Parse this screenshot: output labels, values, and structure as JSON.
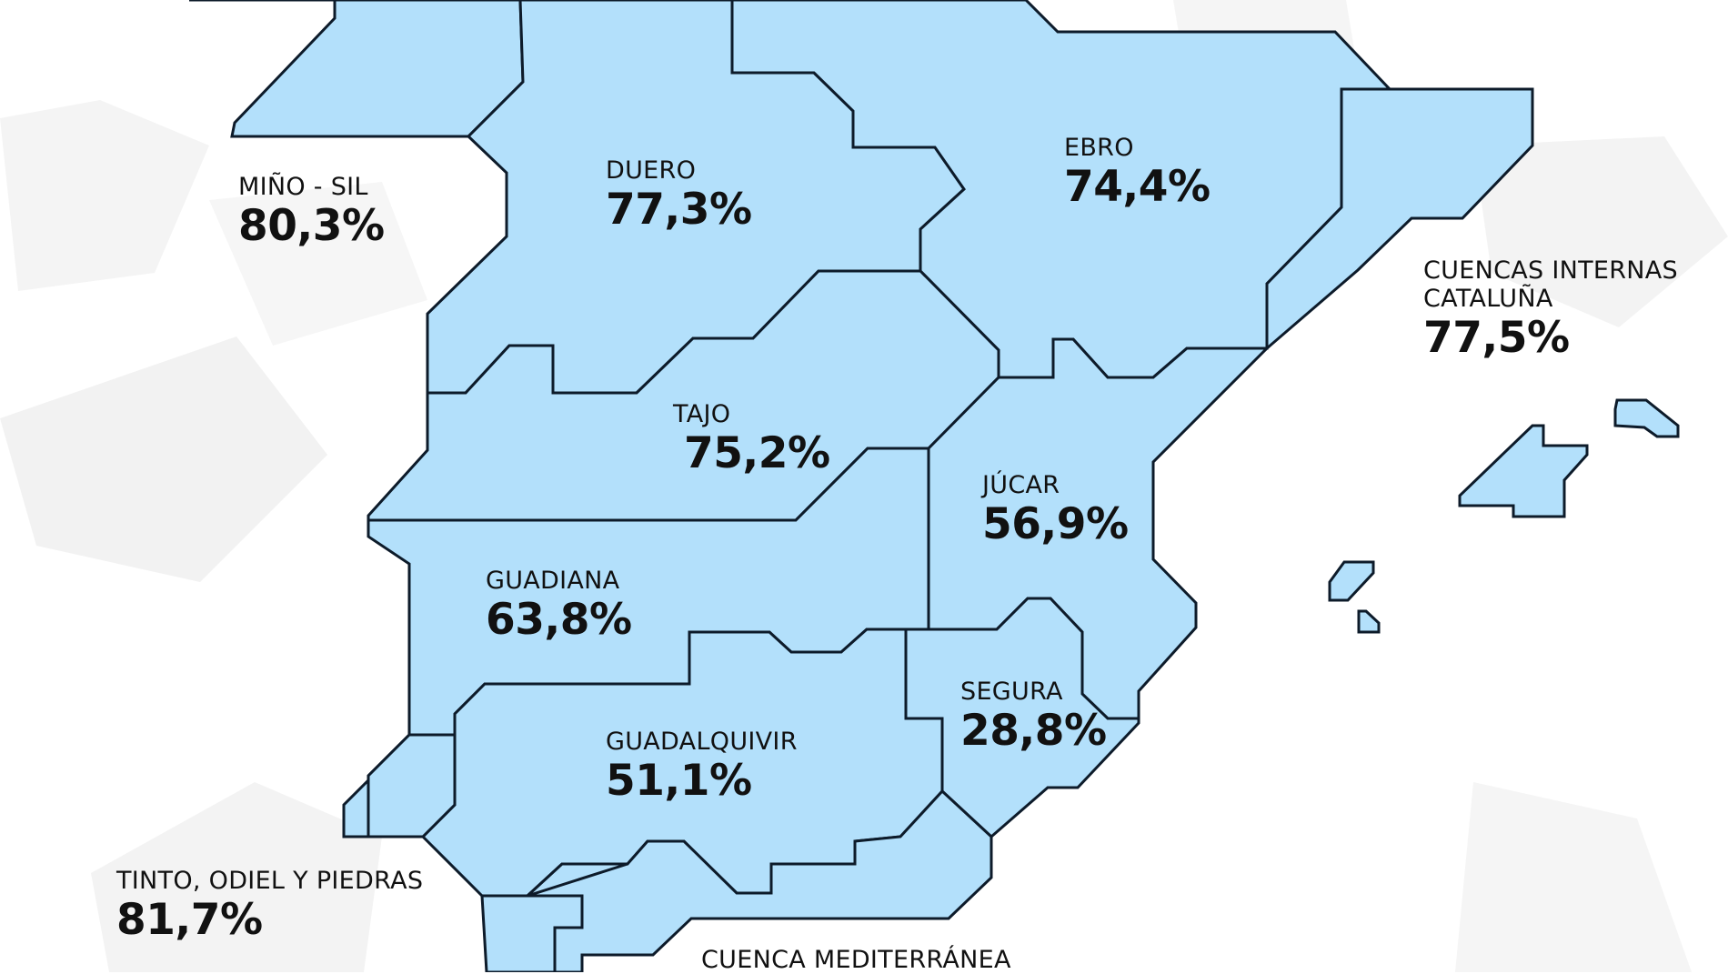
{
  "colors": {
    "basin_fill": "#b3e0fb",
    "border": "#0d1b2a",
    "text": "#111111",
    "background": "#ffffff"
  },
  "basins": {
    "mino_sil": {
      "name": "MIÑO - SIL",
      "value": "80,3%"
    },
    "duero": {
      "name": "DUERO",
      "value": "77,3%"
    },
    "ebro": {
      "name": "EBRO",
      "value": "74,4%"
    },
    "cuencas_internas_cataluna": {
      "name_line1": "CUENCAS INTERNAS",
      "name_line2": "CATALUÑA",
      "value": "77,5%"
    },
    "tajo": {
      "name": "TAJO",
      "value": "75,2%"
    },
    "jucar": {
      "name": "JÚCAR",
      "value": "56,9%"
    },
    "guadiana": {
      "name": "GUADIANA",
      "value": "63,8%"
    },
    "segura": {
      "name": "SEGURA",
      "value": "28,8%"
    },
    "guadalquivir": {
      "name": "GUADALQUIVIR",
      "value": "51,1%"
    },
    "tinto_odiel_piedras": {
      "name": "TINTO, ODIEL Y PIEDRAS",
      "value": "81,7%"
    },
    "cuenca_mediterranea": {
      "name": "CUENCA MEDITERRÁNEA"
    }
  }
}
